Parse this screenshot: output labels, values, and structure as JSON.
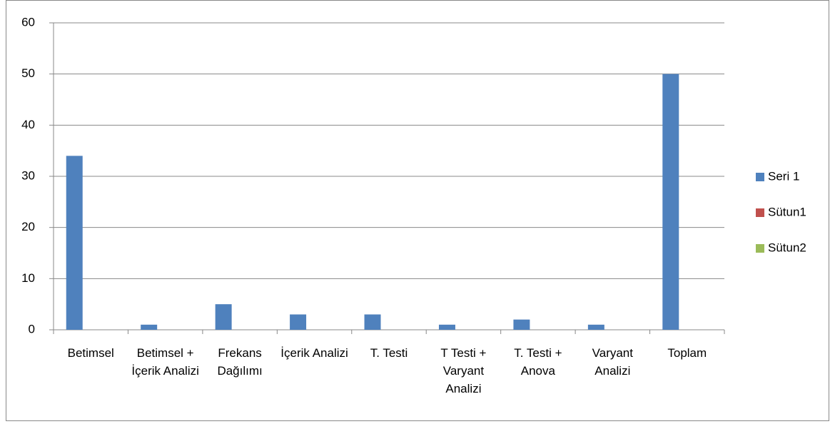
{
  "chart_data": {
    "type": "bar",
    "categories": [
      "Betimsel",
      "Betimsel + İçerik Analizi",
      "Frekans Dağılımı",
      "İçerik Analizi",
      "T. Testi",
      "T Testi + Varyant Analizi",
      "T. Testi + Anova",
      "Varyant Analizi",
      "Toplam"
    ],
    "series": [
      {
        "name": "Seri 1",
        "color": "#4f81bd",
        "values": [
          34,
          1,
          5,
          3,
          3,
          1,
          2,
          1,
          50
        ]
      },
      {
        "name": "Sütun1",
        "color": "#c0504d",
        "values": [
          null,
          null,
          null,
          null,
          null,
          null,
          null,
          null,
          null
        ]
      },
      {
        "name": "Sütun2",
        "color": "#9bbb59",
        "values": [
          null,
          null,
          null,
          null,
          null,
          null,
          null,
          null,
          null
        ]
      }
    ],
    "ylim": [
      0,
      60
    ],
    "yticks": [
      0,
      10,
      20,
      30,
      40,
      50,
      60
    ],
    "grid": true,
    "legend": "right"
  }
}
